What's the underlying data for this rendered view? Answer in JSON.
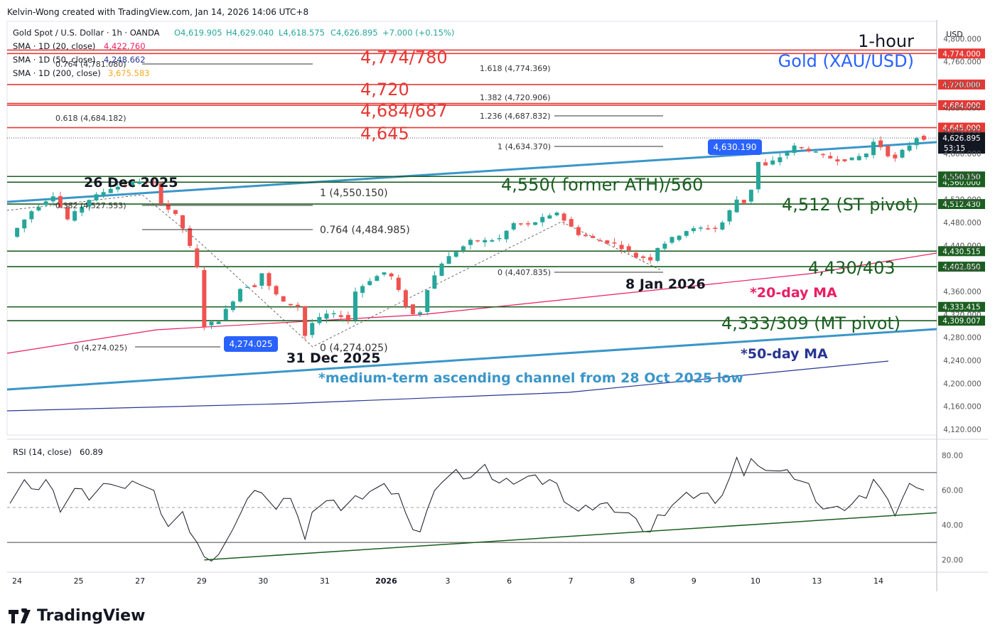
{
  "header": {
    "attribution": "Kelvin-Wong created with TradingView.com, Jan 14, 2026 14:06 UTC+8"
  },
  "legend": {
    "symbol": "Gold Spot / U.S. Dollar · 1h · OANDA",
    "o": "O4,619.905",
    "h": "H4,629.040",
    "l": "L4,618.575",
    "c": "C4,626.895",
    "chg": "+7.000 (+0.15%)",
    "sma20_label": "SMA · 1D (20, close)",
    "sma20_val": "4,422.760",
    "sma50_label": "SMA · 1D (50, close)",
    "sma50_val": "4,248.662",
    "sma200_label": "SMA · 1D (200, close)",
    "sma200_val": "3,675.583"
  },
  "titles": {
    "timeframe": "1-hour",
    "instrument": "Gold (XAU/USD)"
  },
  "currency": "USD",
  "countdown": "53:15",
  "brand": "TradingView",
  "colors": {
    "up": "#26a69a",
    "down": "#ef5350",
    "resistance": "#e53935",
    "support": "#1b5e20",
    "channel": "#3a96c8",
    "ma20": "#e91e63",
    "ma50": "#283593",
    "title_blue": "#2962ff"
  },
  "chart_data": [
    {
      "type": "candlestick",
      "interval": "1h",
      "x_ticks": [
        "24",
        "25",
        "27",
        "29",
        "30",
        "31",
        "2026",
        "3",
        "6",
        "7",
        "8",
        "9",
        "10",
        "13",
        "14"
      ],
      "y_ticks": [
        "4,800.000",
        "4,760.000",
        "4,720.000",
        "4,680.000",
        "4,640.000",
        "4,600.000",
        "4,560.000",
        "4,520.000",
        "4,480.000",
        "4,440.000",
        "4,400.000",
        "4,360.000",
        "4,320.000",
        "4,280.000",
        "4,240.000",
        "4,200.000",
        "4,160.000",
        "4,120.000"
      ],
      "ylim": [
        4110,
        4830
      ],
      "price_path": [
        [
          0,
          4455
        ],
        [
          3,
          4500
        ],
        [
          6,
          4528
        ],
        [
          8,
          4485
        ],
        [
          11,
          4520
        ],
        [
          14,
          4540
        ],
        [
          16,
          4545
        ],
        [
          18,
          4552
        ],
        [
          19,
          4548
        ],
        [
          20,
          4548
        ],
        [
          21,
          4515
        ],
        [
          22,
          4503
        ],
        [
          23,
          4492
        ],
        [
          24,
          4470
        ],
        [
          25,
          4437
        ],
        [
          26,
          4400
        ],
        [
          27,
          4300
        ],
        [
          29,
          4310
        ],
        [
          31,
          4345
        ],
        [
          32,
          4365
        ],
        [
          33,
          4370
        ],
        [
          34,
          4370
        ],
        [
          35,
          4392
        ],
        [
          36,
          4368
        ],
        [
          38,
          4340
        ],
        [
          40,
          4334
        ],
        [
          41,
          4283
        ],
        [
          42,
          4305
        ],
        [
          44,
          4320
        ],
        [
          46,
          4318
        ],
        [
          47,
          4310
        ],
        [
          48,
          4360
        ],
        [
          50,
          4380
        ],
        [
          52,
          4393
        ],
        [
          53,
          4385
        ],
        [
          54,
          4360
        ],
        [
          55,
          4335
        ],
        [
          56,
          4320
        ],
        [
          57,
          4325
        ],
        [
          58,
          4365
        ],
        [
          60,
          4410
        ],
        [
          62,
          4430
        ],
        [
          64,
          4447
        ],
        [
          66,
          4448
        ],
        [
          68,
          4452
        ],
        [
          70,
          4478
        ],
        [
          72,
          4475
        ],
        [
          74,
          4487
        ],
        [
          75,
          4490
        ],
        [
          76,
          4498
        ],
        [
          77,
          4484
        ],
        [
          79,
          4460
        ],
        [
          82,
          4448
        ],
        [
          84,
          4443
        ],
        [
          86,
          4430
        ],
        [
          87,
          4420
        ],
        [
          88,
          4419
        ],
        [
          89,
          4416
        ],
        [
          90,
          4437
        ],
        [
          92,
          4452
        ],
        [
          94,
          4466
        ],
        [
          96,
          4470
        ],
        [
          98,
          4470
        ],
        [
          99,
          4480
        ],
        [
          100,
          4500
        ],
        [
          101,
          4520
        ],
        [
          102,
          4515
        ],
        [
          103,
          4538
        ],
        [
          104,
          4585
        ],
        [
          105,
          4578
        ],
        [
          107,
          4594
        ],
        [
          109,
          4612
        ],
        [
          111,
          4606
        ],
        [
          113,
          4595
        ],
        [
          115,
          4589
        ],
        [
          117,
          4590
        ],
        [
          119,
          4600
        ],
        [
          120,
          4620
        ],
        [
          121,
          4612
        ],
        [
          122,
          4598
        ],
        [
          123,
          4590
        ],
        [
          124,
          4604
        ],
        [
          125,
          4615
        ],
        [
          126,
          4628
        ],
        [
          127,
          4626.9
        ]
      ],
      "levels": [
        {
          "label": "4,774/780",
          "values": [
            4774,
            4780
          ],
          "fib_text": "1.618 (4,774.369)",
          "axis_tag": "4,774.000"
        },
        {
          "label": "4,720",
          "values": [
            4720
          ],
          "fib_text": "1.382 (4,720.906)",
          "axis_tag": "4,720.000"
        },
        {
          "label": "4,684/687",
          "values": [
            4684,
            4687
          ],
          "fib_text": "1.236 (4,687.832)",
          "axis_tag": "4,684.000"
        },
        {
          "label": "4,645",
          "values": [
            4645
          ],
          "fib_text": "1 (4,634.370)",
          "axis_tag": "4,645.000"
        },
        {
          "label": "4,550( former ATH)/560",
          "values": [
            4550,
            4560
          ],
          "axis_tag": "4,560.000",
          "axis_tag2": "4,550.150"
        },
        {
          "label": "4,512 (ST pivot)",
          "values": [
            4512
          ],
          "axis_tag": "4,512.430"
        },
        {
          "label": "4,430/403",
          "values": [
            4430,
            4403
          ],
          "axis_tag": "4,430.515",
          "axis_tag2": "4,402.850"
        },
        {
          "label": "4,333/309 (MT pivot)",
          "values": [
            4333,
            4309
          ],
          "axis_tag": "4,333.415",
          "axis_tag2": "4,309.007"
        }
      ],
      "current_price": {
        "value": 4626.895,
        "text": "4,626.895"
      },
      "fib_left": {
        "f0764": "0.764 (4,781.080)",
        "f0618": "0.618 (4,684.182)",
        "f0382": "0.382 (4,527.553)",
        "f1": "1 (4,550.150)",
        "f0764b": "0.764 (4,484.985)",
        "f0": "0 (4,274.025)"
      },
      "fib_mid": {
        "f0": "0 (4,407.835)",
        "f0b": "0 (4,274.025)"
      },
      "price_tags": {
        "high": "4,630.190",
        "low": "4,274.025"
      },
      "annotations": {
        "dec26": "26 Dec 2025",
        "dec31": "31 Dec 2025",
        "jan8": "8 Jan 2026",
        "ma20": "*20-day MA",
        "ma50": "*50-day MA",
        "channel": "*medium-term ascending channel from 28 Oct 2025 low"
      }
    },
    {
      "type": "line",
      "title": "RSI (14, close)",
      "current": "60.89",
      "y_ticks": [
        "80.00",
        "60.00",
        "40.00",
        "20.00"
      ],
      "ylim": [
        15,
        85
      ],
      "bands": [
        70,
        50,
        30
      ],
      "values": [
        [
          0,
          55
        ],
        [
          2,
          65
        ],
        [
          3,
          58
        ],
        [
          5,
          66
        ],
        [
          7,
          50
        ],
        [
          9,
          60
        ],
        [
          11,
          56
        ],
        [
          13,
          62
        ],
        [
          14,
          66
        ],
        [
          16,
          60
        ],
        [
          18,
          65
        ],
        [
          20,
          58
        ],
        [
          22,
          40
        ],
        [
          24,
          45
        ],
        [
          26,
          30
        ],
        [
          27,
          20
        ],
        [
          29,
          24
        ],
        [
          31,
          35
        ],
        [
          32,
          48
        ],
        [
          33,
          55
        ],
        [
          34,
          58
        ],
        [
          35,
          61
        ],
        [
          37,
          48
        ],
        [
          39,
          57
        ],
        [
          40,
          45
        ],
        [
          41,
          30
        ],
        [
          42,
          50
        ],
        [
          44,
          53
        ],
        [
          46,
          50
        ],
        [
          48,
          55
        ],
        [
          50,
          60
        ],
        [
          52,
          61
        ],
        [
          54,
          58
        ],
        [
          55,
          45
        ],
        [
          56,
          40
        ],
        [
          57,
          37
        ],
        [
          58,
          48
        ],
        [
          60,
          66
        ],
        [
          62,
          70
        ],
        [
          64,
          68
        ],
        [
          66,
          72
        ],
        [
          68,
          64
        ],
        [
          70,
          66
        ],
        [
          72,
          67
        ],
        [
          74,
          65
        ],
        [
          75,
          66
        ],
        [
          76,
          62
        ],
        [
          77,
          56
        ],
        [
          79,
          47
        ],
        [
          82,
          52
        ],
        [
          84,
          50
        ],
        [
          86,
          46
        ],
        [
          87,
          41
        ],
        [
          88,
          38
        ],
        [
          89,
          36
        ],
        [
          90,
          44
        ],
        [
          92,
          52
        ],
        [
          94,
          56
        ],
        [
          96,
          58
        ],
        [
          98,
          55
        ],
        [
          99,
          58
        ],
        [
          100,
          66
        ],
        [
          101,
          76
        ],
        [
          102,
          70
        ],
        [
          103,
          78
        ],
        [
          104,
          72
        ],
        [
          105,
          74
        ],
        [
          107,
          70
        ],
        [
          109,
          68
        ],
        [
          111,
          62
        ],
        [
          113,
          50
        ],
        [
          115,
          48
        ],
        [
          117,
          52
        ],
        [
          119,
          58
        ],
        [
          120,
          67
        ],
        [
          121,
          60
        ],
        [
          122,
          52
        ],
        [
          123,
          47
        ],
        [
          124,
          55
        ],
        [
          125,
          62
        ],
        [
          126,
          64
        ],
        [
          127,
          60.89
        ]
      ],
      "trendline": [
        [
          27,
          20
        ],
        [
          132,
          47
        ]
      ]
    }
  ]
}
